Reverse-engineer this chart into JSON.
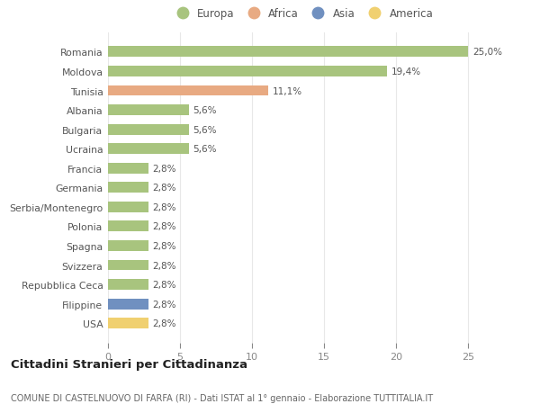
{
  "countries": [
    "Romania",
    "Moldova",
    "Tunisia",
    "Albania",
    "Bulgaria",
    "Ucraina",
    "Francia",
    "Germania",
    "Serbia/Montenegro",
    "Polonia",
    "Spagna",
    "Svizzera",
    "Repubblica Ceca",
    "Filippine",
    "USA"
  ],
  "values": [
    25.0,
    19.4,
    11.1,
    5.6,
    5.6,
    5.6,
    2.8,
    2.8,
    2.8,
    2.8,
    2.8,
    2.8,
    2.8,
    2.8,
    2.8
  ],
  "labels": [
    "25,0%",
    "19,4%",
    "11,1%",
    "5,6%",
    "5,6%",
    "5,6%",
    "2,8%",
    "2,8%",
    "2,8%",
    "2,8%",
    "2,8%",
    "2,8%",
    "2,8%",
    "2,8%",
    "2,8%"
  ],
  "categories": [
    "Europa",
    "Africa",
    "Asia",
    "America"
  ],
  "continent": [
    "Europa",
    "Europa",
    "Africa",
    "Europa",
    "Europa",
    "Europa",
    "Europa",
    "Europa",
    "Europa",
    "Europa",
    "Europa",
    "Europa",
    "Europa",
    "Asia",
    "America"
  ],
  "colors": {
    "Europa": "#a8c47e",
    "Africa": "#e8aa82",
    "Asia": "#7090c0",
    "America": "#f0d070"
  },
  "background_color": "#ffffff",
  "grid_color": "#e8e8e8",
  "title": "Cittadini Stranieri per Cittadinanza",
  "subtitle": "COMUNE DI CASTELNUOVO DI FARFA (RI) - Dati ISTAT al 1° gennaio - Elaborazione TUTTITALIA.IT",
  "xlim": [
    0,
    27
  ],
  "xticks": [
    0,
    5,
    10,
    15,
    20,
    25
  ]
}
